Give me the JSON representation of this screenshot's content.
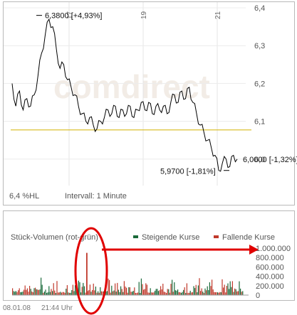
{
  "chart_data": [
    {
      "type": "line",
      "x_tick_labels": [
        "17",
        "19",
        "21"
      ],
      "y_tick_labels": [
        "6,4",
        "6,3",
        "6,2",
        "6,1",
        "6,0"
      ],
      "ylim": [
        5.97,
        6.4
      ],
      "reference_line": {
        "value": 6.077,
        "color": "#d4b400"
      },
      "annotations": [
        {
          "label": "6,3800 [+4,93%]",
          "value": 6.38
        },
        {
          "label": "5,9700 [-1,81%]",
          "value": 5.97
        },
        {
          "label": "6,0000 [-1,32%]",
          "value": 6.0
        }
      ],
      "series": [
        {
          "color": "#000000",
          "values": [
            6.2,
            6.14,
            6.18,
            6.13,
            6.16,
            6.14,
            6.17,
            6.22,
            6.28,
            6.33,
            6.37,
            6.35,
            6.29,
            6.24,
            6.25,
            6.21,
            6.19,
            6.17,
            6.14,
            6.12,
            6.1,
            6.11,
            6.09,
            6.08,
            6.1,
            6.11,
            6.13,
            6.12,
            6.14,
            6.11,
            6.13,
            6.12,
            6.14,
            6.11,
            6.13,
            6.15,
            6.13,
            6.15,
            6.12,
            6.14,
            6.13,
            6.14,
            6.12,
            6.15,
            6.17,
            6.15,
            6.18,
            6.16,
            6.19,
            6.15,
            6.12,
            6.09,
            6.07,
            6.05,
            6.03,
            6.01,
            5.97,
            5.99,
            6.0,
            5.98,
            6.01,
            6.0
          ]
        }
      ],
      "info": {
        "left": "6,4 %HL",
        "right": "Intervall: 1 Minute"
      }
    },
    {
      "type": "bar",
      "title": "Stück-Volumen (rot-grün)",
      "legend": [
        {
          "label": "Steigende Kurse",
          "color": "#1a6a3a"
        },
        {
          "label": "Fallende Kurse",
          "color": "#c0392b"
        }
      ],
      "y_tick_labels": [
        "1.000.000",
        "800.000",
        "600.000",
        "400.000",
        "200.000",
        "0"
      ],
      "ylim": [
        0,
        1000000
      ],
      "spike": {
        "value": 900000
      },
      "annotation": {
        "shape": "ellipse + arrow",
        "color": "#e00000"
      }
    }
  ],
  "footer": {
    "date": "08.01.08",
    "time": "21:44 Uhr"
  },
  "watermark": "comdirect"
}
